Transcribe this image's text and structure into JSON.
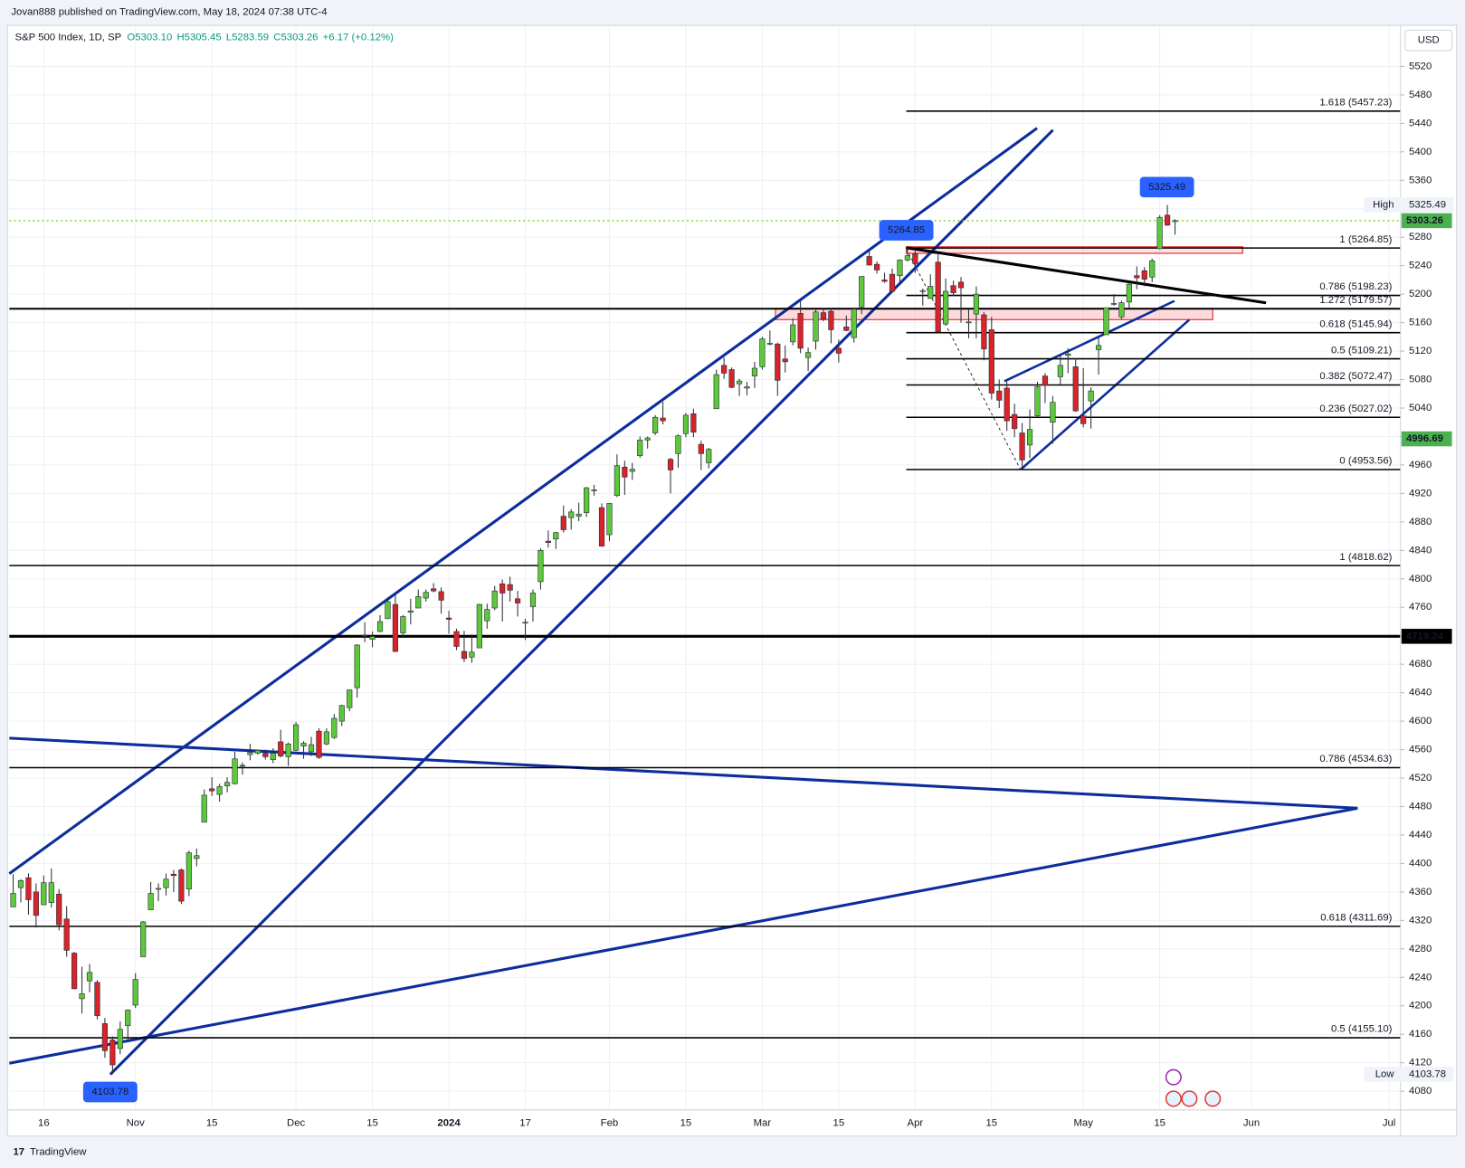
{
  "header": "Jovan888 published on TradingView.com, May 18, 2024 07:38 UTC-4",
  "footer": "TradingView",
  "chart_data": {
    "type": "candlestick",
    "currency": "USD",
    "legend": {
      "symbol": "S&P 500 Index, 1D, SP",
      "open": "O5303.10",
      "high": "H5305.45",
      "low": "L5283.59",
      "close": "C5303.26",
      "change": "+6.17 (+0.12%)"
    },
    "up_color": "#5cc93b",
    "down_color": "#d8232a",
    "wick_color": "#2a2e39",
    "grid": true,
    "ylim": [
      4053.7,
      5576.4
    ],
    "yticks": [
      4080,
      4120,
      4160,
      4200,
      4240,
      4280,
      4320,
      4360,
      4400,
      4440,
      4480,
      4520,
      4560,
      4600,
      4640,
      4680,
      4720,
      4760,
      4800,
      4840,
      4880,
      4920,
      4960,
      5000,
      5040,
      5080,
      5120,
      5160,
      5200,
      5240,
      5280,
      5320,
      5360,
      5400,
      5440,
      5480,
      5520
    ],
    "categories": [
      null,
      null,
      null,
      null,
      "16",
      null,
      null,
      null,
      null,
      null,
      null,
      null,
      null,
      null,
      null,
      null,
      "Nov",
      null,
      null,
      null,
      null,
      null,
      null,
      null,
      null,
      null,
      "15",
      null,
      null,
      null,
      null,
      null,
      null,
      null,
      null,
      null,
      null,
      "Dec",
      null,
      null,
      null,
      null,
      null,
      null,
      null,
      null,
      null,
      "15",
      null,
      null,
      null,
      null,
      null,
      null,
      null,
      null,
      null,
      "2024",
      null,
      null,
      null,
      null,
      null,
      null,
      null,
      null,
      null,
      "17",
      null,
      null,
      null,
      null,
      null,
      null,
      null,
      null,
      null,
      null,
      "Feb",
      null,
      null,
      null,
      null,
      null,
      null,
      null,
      null,
      null,
      "15",
      null,
      null,
      null,
      null,
      null,
      null,
      null,
      null,
      null,
      "Mar",
      null,
      null,
      null,
      null,
      null,
      null,
      null,
      null,
      null,
      "15",
      null,
      null,
      null,
      null,
      null,
      null,
      null,
      null,
      null,
      "Apr",
      null,
      null,
      null,
      null,
      null,
      null,
      null,
      null,
      null,
      "15",
      null,
      null,
      null,
      null,
      null,
      null,
      null,
      null,
      null,
      null,
      null,
      "May",
      null,
      null,
      null,
      null,
      null,
      null,
      null,
      null,
      null,
      "15",
      null,
      null,
      null,
      null,
      null,
      null,
      null,
      null,
      null,
      null,
      null,
      "Jun",
      null,
      null,
      null,
      null,
      null,
      null,
      null,
      null,
      null,
      null,
      null,
      null,
      null,
      null,
      null,
      null,
      null,
      "Jul",
      null
    ],
    "candles": [
      [
        4339,
        4385,
        4339,
        4358
      ],
      [
        4366,
        4378,
        4345,
        4376
      ],
      [
        4380,
        4386,
        4328,
        4349
      ],
      [
        4360,
        4372,
        4310,
        4327
      ],
      [
        4342,
        4383,
        4342,
        4373
      ],
      [
        4345,
        4393,
        4338,
        4373
      ],
      [
        4357,
        4364,
        4306,
        4314
      ],
      [
        4322,
        4340,
        4269,
        4278
      ],
      [
        4274,
        4276,
        4223,
        4224
      ],
      [
        4210,
        4255,
        4189,
        4217
      ],
      [
        4235,
        4259,
        4219,
        4247
      ],
      [
        4233,
        4236,
        4181,
        4186
      ],
      [
        4175,
        4183,
        4127,
        4137
      ],
      [
        4152,
        4157,
        4103.78,
        4117
      ],
      [
        4140,
        4178,
        4132,
        4167
      ],
      [
        4172,
        4195,
        4153,
        4194
      ],
      [
        4201,
        4246,
        4197,
        4237
      ],
      [
        4269,
        4319,
        4269,
        4318
      ],
      [
        4335,
        4374,
        4335,
        4358
      ],
      [
        4364,
        4372,
        4347,
        4365
      ],
      [
        4366,
        4386,
        4355,
        4378
      ],
      [
        4385,
        4391,
        4360,
        4383
      ],
      [
        4391,
        4393,
        4343,
        4347
      ],
      [
        4364,
        4418,
        4354,
        4415
      ],
      [
        4407,
        4421,
        4396,
        4411
      ],
      [
        4458,
        4504,
        4458,
        4496
      ],
      [
        4505,
        4521,
        4495,
        4502
      ],
      [
        4497,
        4512,
        4487,
        4508
      ],
      [
        4509,
        4521,
        4500,
        4514
      ],
      [
        4512,
        4557,
        4511,
        4547
      ],
      [
        4538,
        4542,
        4525,
        4538
      ],
      [
        4553,
        4568,
        4545,
        4556
      ],
      [
        4555,
        4560,
        4553,
        4559
      ],
      [
        4555,
        4560,
        4546,
        4550
      ],
      [
        4546,
        4562,
        4541,
        4555
      ],
      [
        4571,
        4588,
        4549,
        4551
      ],
      [
        4550,
        4570,
        4537,
        4568
      ],
      [
        4559,
        4599,
        4558,
        4595
      ],
      [
        4565,
        4572,
        4547,
        4569
      ],
      [
        4557,
        4578,
        4551,
        4567
      ],
      [
        4586,
        4590,
        4547,
        4549
      ],
      [
        4568,
        4590,
        4566,
        4585
      ],
      [
        4577,
        4610,
        4575,
        4604
      ],
      [
        4600,
        4623,
        4593,
        4622
      ],
      [
        4619,
        4644,
        4614,
        4644
      ],
      [
        4647,
        4708,
        4633,
        4707
      ],
      [
        4721,
        4739,
        4711,
        4720
      ],
      [
        4715,
        4726,
        4704,
        4719
      ],
      [
        4726,
        4749,
        4725,
        4740
      ],
      [
        4744,
        4769,
        4744,
        4768
      ],
      [
        4764,
        4778,
        4697,
        4698
      ],
      [
        4724,
        4749,
        4717,
        4747
      ],
      [
        4753,
        4772,
        4736,
        4755
      ],
      [
        4759,
        4785,
        4759,
        4775
      ],
      [
        4773,
        4785,
        4768,
        4781
      ],
      [
        4786,
        4794,
        4781,
        4783
      ],
      [
        4782,
        4788,
        4751,
        4770
      ],
      [
        4745,
        4755,
        4723,
        4743
      ],
      [
        4726,
        4730,
        4700,
        4705
      ],
      [
        4698,
        4727,
        4683,
        4688
      ],
      [
        4690,
        4722,
        4682,
        4697
      ],
      [
        4703,
        4765,
        4703,
        4764
      ],
      [
        4741,
        4765,
        4730,
        4757
      ],
      [
        4759,
        4790,
        4756,
        4783
      ],
      [
        4793,
        4799,
        4740,
        4780
      ],
      [
        4792,
        4803,
        4768,
        4784
      ],
      [
        4772,
        4783,
        4747,
        4766
      ],
      [
        4739,
        4744,
        4714,
        4739
      ],
      [
        4761,
        4785,
        4740,
        4780
      ],
      [
        4796,
        4843,
        4785,
        4840
      ],
      [
        4853,
        4868,
        4844,
        4851
      ],
      [
        4856,
        4866,
        4842,
        4865
      ],
      [
        4888,
        4903,
        4865,
        4869
      ],
      [
        4886,
        4898,
        4869,
        4894
      ],
      [
        4888,
        4907,
        4881,
        4891
      ],
      [
        4893,
        4929,
        4887,
        4928
      ],
      [
        4925,
        4932,
        4917,
        4925
      ],
      [
        4900,
        4906,
        4845,
        4846
      ],
      [
        4862,
        4906,
        4853,
        4906
      ],
      [
        4917,
        4975,
        4915,
        4959
      ],
      [
        4957,
        4966,
        4918,
        4943
      ],
      [
        4951,
        4963,
        4939,
        4954
      ],
      [
        4973,
        5000,
        4970,
        4995
      ],
      [
        4995,
        5000,
        4983,
        4998
      ],
      [
        5005,
        5030,
        5002,
        5027
      ],
      [
        5026,
        5049,
        5017,
        5022
      ],
      [
        4968,
        4970,
        4920,
        4953
      ],
      [
        4976,
        5003,
        4956,
        5001
      ],
      [
        5004,
        5033,
        4999,
        5030
      ],
      [
        5032,
        5039,
        4999,
        5006
      ],
      [
        4989,
        4994,
        4953,
        4976
      ],
      [
        4963,
        4984,
        4955,
        4982
      ],
      [
        5039,
        5094,
        5039,
        5087
      ],
      [
        5100,
        5111,
        5081,
        5089
      ],
      [
        5094,
        5097,
        5068,
        5069
      ],
      [
        5074,
        5081,
        5057,
        5078
      ],
      [
        5068,
        5077,
        5058,
        5070
      ],
      [
        5085,
        5105,
        5068,
        5096
      ],
      [
        5098,
        5140,
        5094,
        5137
      ],
      [
        5131,
        5149,
        5128,
        5131
      ],
      [
        5130,
        5132,
        5057,
        5079
      ],
      [
        5109,
        5128,
        5090,
        5105
      ],
      [
        5133,
        5166,
        5128,
        5157
      ],
      [
        5173,
        5190,
        5117,
        5124
      ],
      [
        5111,
        5125,
        5092,
        5118
      ],
      [
        5134,
        5180,
        5122,
        5175
      ],
      [
        5174,
        5180,
        5162,
        5165
      ],
      [
        5176,
        5180,
        5131,
        5150
      ],
      [
        5124,
        5136,
        5104,
        5117
      ],
      [
        5154,
        5170,
        5148,
        5149
      ],
      [
        5139,
        5180,
        5132,
        5179
      ],
      [
        5182,
        5225,
        5172,
        5225
      ],
      [
        5253,
        5261,
        5240,
        5241
      ],
      [
        5242,
        5246,
        5229,
        5234
      ],
      [
        5220,
        5230,
        5216,
        5218
      ],
      [
        5228,
        5236,
        5203,
        5204
      ],
      [
        5226,
        5249,
        5214,
        5248
      ],
      [
        5248,
        5264.85,
        5246,
        5254
      ],
      [
        5257,
        5263,
        5230,
        5243
      ],
      [
        5204,
        5208,
        5184,
        5205
      ],
      [
        5194,
        5228,
        5194,
        5211
      ],
      [
        5245,
        5256,
        5146,
        5147
      ],
      [
        5158,
        5222,
        5157,
        5204
      ],
      [
        5212,
        5219,
        5197,
        5202
      ],
      [
        5217,
        5224,
        5160,
        5209
      ],
      [
        5161,
        5178,
        5138,
        5161
      ],
      [
        5172,
        5211,
        5138,
        5200
      ],
      [
        5171,
        5175,
        5107,
        5123
      ],
      [
        5150,
        5168,
        5052,
        5061
      ],
      [
        5064,
        5080,
        5040,
        5051
      ],
      [
        5068,
        5077,
        5008,
        5022
      ],
      [
        5031,
        5046,
        4999,
        5011
      ],
      [
        5005,
        5019,
        4953.56,
        4967
      ],
      [
        4988,
        5038,
        4970,
        5010
      ],
      [
        5029,
        5077,
        5027,
        5070
      ],
      [
        5085,
        5089,
        5047,
        5072
      ],
      [
        5020,
        5057,
        4990,
        5048
      ],
      [
        5084,
        5114,
        5073,
        5100
      ],
      [
        5114,
        5124,
        5089,
        5116
      ],
      [
        5098,
        5110,
        5035,
        5036
      ],
      [
        5029,
        5096,
        5013,
        5018
      ],
      [
        5050,
        5069,
        5011,
        5064
      ],
      [
        5122,
        5139,
        5087,
        5128
      ],
      [
        5143,
        5181,
        5143,
        5181
      ],
      [
        5187,
        5200,
        5184,
        5187
      ],
      [
        5168,
        5191,
        5165,
        5188
      ],
      [
        5189,
        5215,
        5180,
        5214
      ],
      [
        5226,
        5239,
        5207,
        5223
      ],
      [
        5233,
        5238,
        5211,
        5221
      ],
      [
        5224,
        5250,
        5217,
        5247
      ],
      [
        5264,
        5311,
        5263,
        5308
      ],
      [
        5311,
        5325.49,
        5296,
        5297
      ],
      [
        5303.1,
        5305.45,
        5283.59,
        5303.26
      ],
      null,
      null,
      null,
      null,
      null,
      null,
      null,
      null,
      null,
      null,
      null,
      null,
      null,
      null,
      null,
      null,
      null,
      null,
      null,
      null,
      null,
      null,
      null,
      null,
      null,
      null,
      null,
      null,
      null
    ],
    "fib_long": [
      {
        "label": "1.272 (5179.57)",
        "value": 5179.57
      },
      {
        "label": "1 (4818.62)",
        "value": 4818.62
      },
      {
        "label": "0.786 (4534.63)",
        "value": 4534.63
      },
      {
        "label": "0.618 (4311.69)",
        "value": 4311.69
      },
      {
        "label": "0.5 (4155.10)",
        "value": 4155.1
      }
    ],
    "fib_recent": [
      {
        "label": "1.618 (5457.23)",
        "value": 5457.23
      },
      {
        "label": "1 (5264.85)",
        "value": 5264.85
      },
      {
        "label": "0.786 (5198.23)",
        "value": 5198.23
      },
      {
        "label": "0.618 (5145.94)",
        "value": 5145.94
      },
      {
        "label": "0.5 (5109.21)",
        "value": 5109.21
      },
      {
        "label": "0.382 (5072.47)",
        "value": 5072.47
      },
      {
        "label": "0.236 (5027.02)",
        "value": 5027.02
      },
      {
        "label": "0 (4953.56)",
        "value": 4953.56
      }
    ],
    "price_markers": [
      {
        "name": "High",
        "value": 5325.49
      },
      {
        "name": "Low",
        "value": 4103.78
      }
    ],
    "price_tags": [
      {
        "value": 5303.26,
        "color": "#4caf50",
        "line": "dotted"
      },
      {
        "value": 4996.69,
        "color": "#4caf50"
      },
      {
        "value": 4719.24,
        "color": "#000000",
        "line": "solid"
      }
    ],
    "callouts": [
      {
        "value": 5325.49
      },
      {
        "value": 5264.85
      },
      {
        "value": 4103.78
      }
    ],
    "callout_color": "#2962ff"
  }
}
